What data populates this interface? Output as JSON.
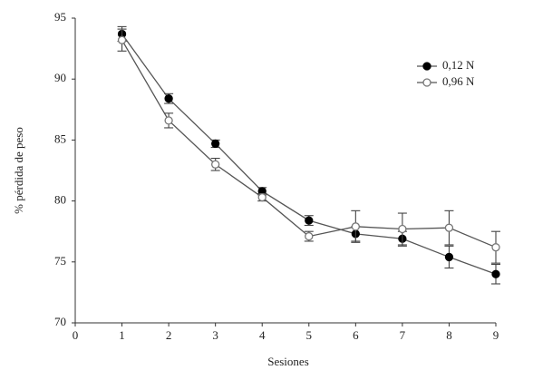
{
  "chart_data": {
    "type": "line",
    "x_label": "Sesiones",
    "y_label": "% pérdida de peso",
    "x": [
      1,
      2,
      3,
      4,
      5,
      6,
      7,
      8,
      9
    ],
    "series": [
      {
        "name": "0,12 N",
        "color": "#000000",
        "marker": "filled",
        "values": [
          93.7,
          88.4,
          84.7,
          80.8,
          78.4,
          77.3,
          76.9,
          75.4,
          74.0
        ],
        "errors": [
          0.6,
          0.4,
          0.3,
          0.3,
          0.4,
          0.6,
          0.6,
          0.9,
          0.8
        ]
      },
      {
        "name": "0,96 N",
        "color": "#777777",
        "marker": "open",
        "values": [
          93.2,
          86.6,
          83.0,
          80.3,
          77.1,
          77.9,
          77.7,
          77.8,
          76.2
        ],
        "errors": [
          0.9,
          0.6,
          0.5,
          0.3,
          0.4,
          1.3,
          1.3,
          1.4,
          1.3
        ]
      }
    ],
    "xlim": [
      0,
      9
    ],
    "xticks": [
      0,
      1,
      2,
      3,
      4,
      5,
      6,
      7,
      8,
      9
    ],
    "ylim": [
      70,
      95
    ],
    "yticks": [
      70,
      75,
      80,
      85,
      90,
      95
    ],
    "grid": false,
    "legend": "upper right"
  }
}
